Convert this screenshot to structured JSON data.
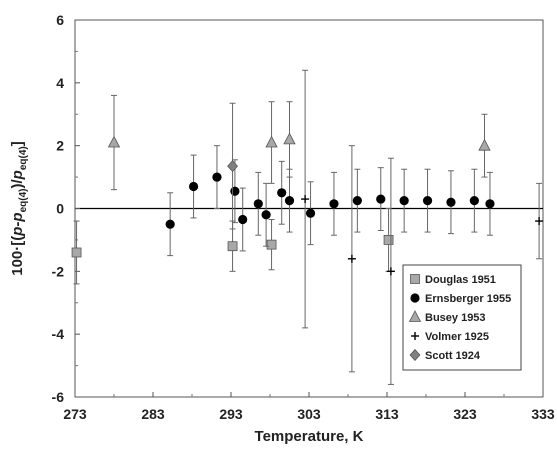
{
  "chart_data": {
    "type": "scatter",
    "xlabel": "Temperature, K",
    "ylabel": {
      "prefix": "100·[(",
      "p1": "p",
      "minus": "-",
      "p2": "p",
      "sub1": "eq(4)",
      "mid": ")/",
      "p3": "p",
      "sub2": "eq(4)",
      "suffix": "]"
    },
    "xlim": [
      273,
      333
    ],
    "ylim": [
      -6,
      6
    ],
    "xticks": [
      "273",
      "283",
      "293",
      "303",
      "313",
      "323",
      "333"
    ],
    "yticks": [
      "-6",
      "-4",
      "-2",
      "0",
      "2",
      "4",
      "6"
    ],
    "grid": false,
    "legend_position": "bottom-right",
    "series": [
      {
        "name": "Douglas 1951",
        "marker": "square",
        "color": "#a8a8a8",
        "points": [
          {
            "x": 273.2,
            "y": -1.4,
            "err": 1.0
          },
          {
            "x": 293.2,
            "y": -1.2,
            "err": 0.8
          },
          {
            "x": 298.2,
            "y": -1.15,
            "err": 0.8
          },
          {
            "x": 313.2,
            "y": -1.0,
            "err": 1.0
          }
        ]
      },
      {
        "name": "Ernsberger 1955",
        "marker": "circle",
        "color": "#000000",
        "points": [
          {
            "x": 285.2,
            "y": -0.5,
            "err": 1.0
          },
          {
            "x": 288.2,
            "y": 0.7,
            "err": 1.0
          },
          {
            "x": 291.2,
            "y": 1.0,
            "err": 1.0
          },
          {
            "x": 293.5,
            "y": 0.55,
            "err": 1.0
          },
          {
            "x": 294.5,
            "y": -0.35,
            "err": 1.0
          },
          {
            "x": 296.5,
            "y": 0.15,
            "err": 1.0
          },
          {
            "x": 297.5,
            "y": -0.2,
            "err": 1.0
          },
          {
            "x": 299.5,
            "y": 0.5,
            "err": 1.0
          },
          {
            "x": 300.5,
            "y": 0.25,
            "err": 1.0
          },
          {
            "x": 303.2,
            "y": -0.15,
            "err": 1.0
          },
          {
            "x": 306.2,
            "y": 0.15,
            "err": 1.0
          },
          {
            "x": 309.2,
            "y": 0.25,
            "err": 1.0
          },
          {
            "x": 312.2,
            "y": 0.3,
            "err": 1.0
          },
          {
            "x": 315.2,
            "y": 0.25,
            "err": 1.0
          },
          {
            "x": 318.2,
            "y": 0.25,
            "err": 1.0
          },
          {
            "x": 321.2,
            "y": 0.2,
            "err": 1.0
          },
          {
            "x": 324.2,
            "y": 0.25,
            "err": 1.0
          },
          {
            "x": 326.2,
            "y": 0.15,
            "err": 1.0
          }
        ]
      },
      {
        "name": "Busey 1953",
        "marker": "triangle",
        "color": "#a8a8a8",
        "points": [
          {
            "x": 278.0,
            "y": 2.1,
            "err": 1.5
          },
          {
            "x": 298.2,
            "y": 2.1,
            "err": 1.3
          },
          {
            "x": 300.5,
            "y": 2.2,
            "err": 1.2
          },
          {
            "x": 325.5,
            "y": 2.0,
            "err": 1.0
          }
        ]
      },
      {
        "name": "Volmer 1925",
        "marker": "plus",
        "color": "#000000",
        "points": [
          {
            "x": 302.5,
            "y": 0.3,
            "err": 4.1
          },
          {
            "x": 308.5,
            "y": -1.6,
            "err": 3.6
          },
          {
            "x": 313.5,
            "y": -2.0,
            "err": 3.6
          },
          {
            "x": 332.5,
            "y": -0.4,
            "err": 1.2
          }
        ]
      },
      {
        "name": "Scott 1924",
        "marker": "diamond",
        "color": "#808080",
        "points": [
          {
            "x": 293.2,
            "y": 1.35,
            "err": 2.0
          }
        ]
      }
    ]
  }
}
